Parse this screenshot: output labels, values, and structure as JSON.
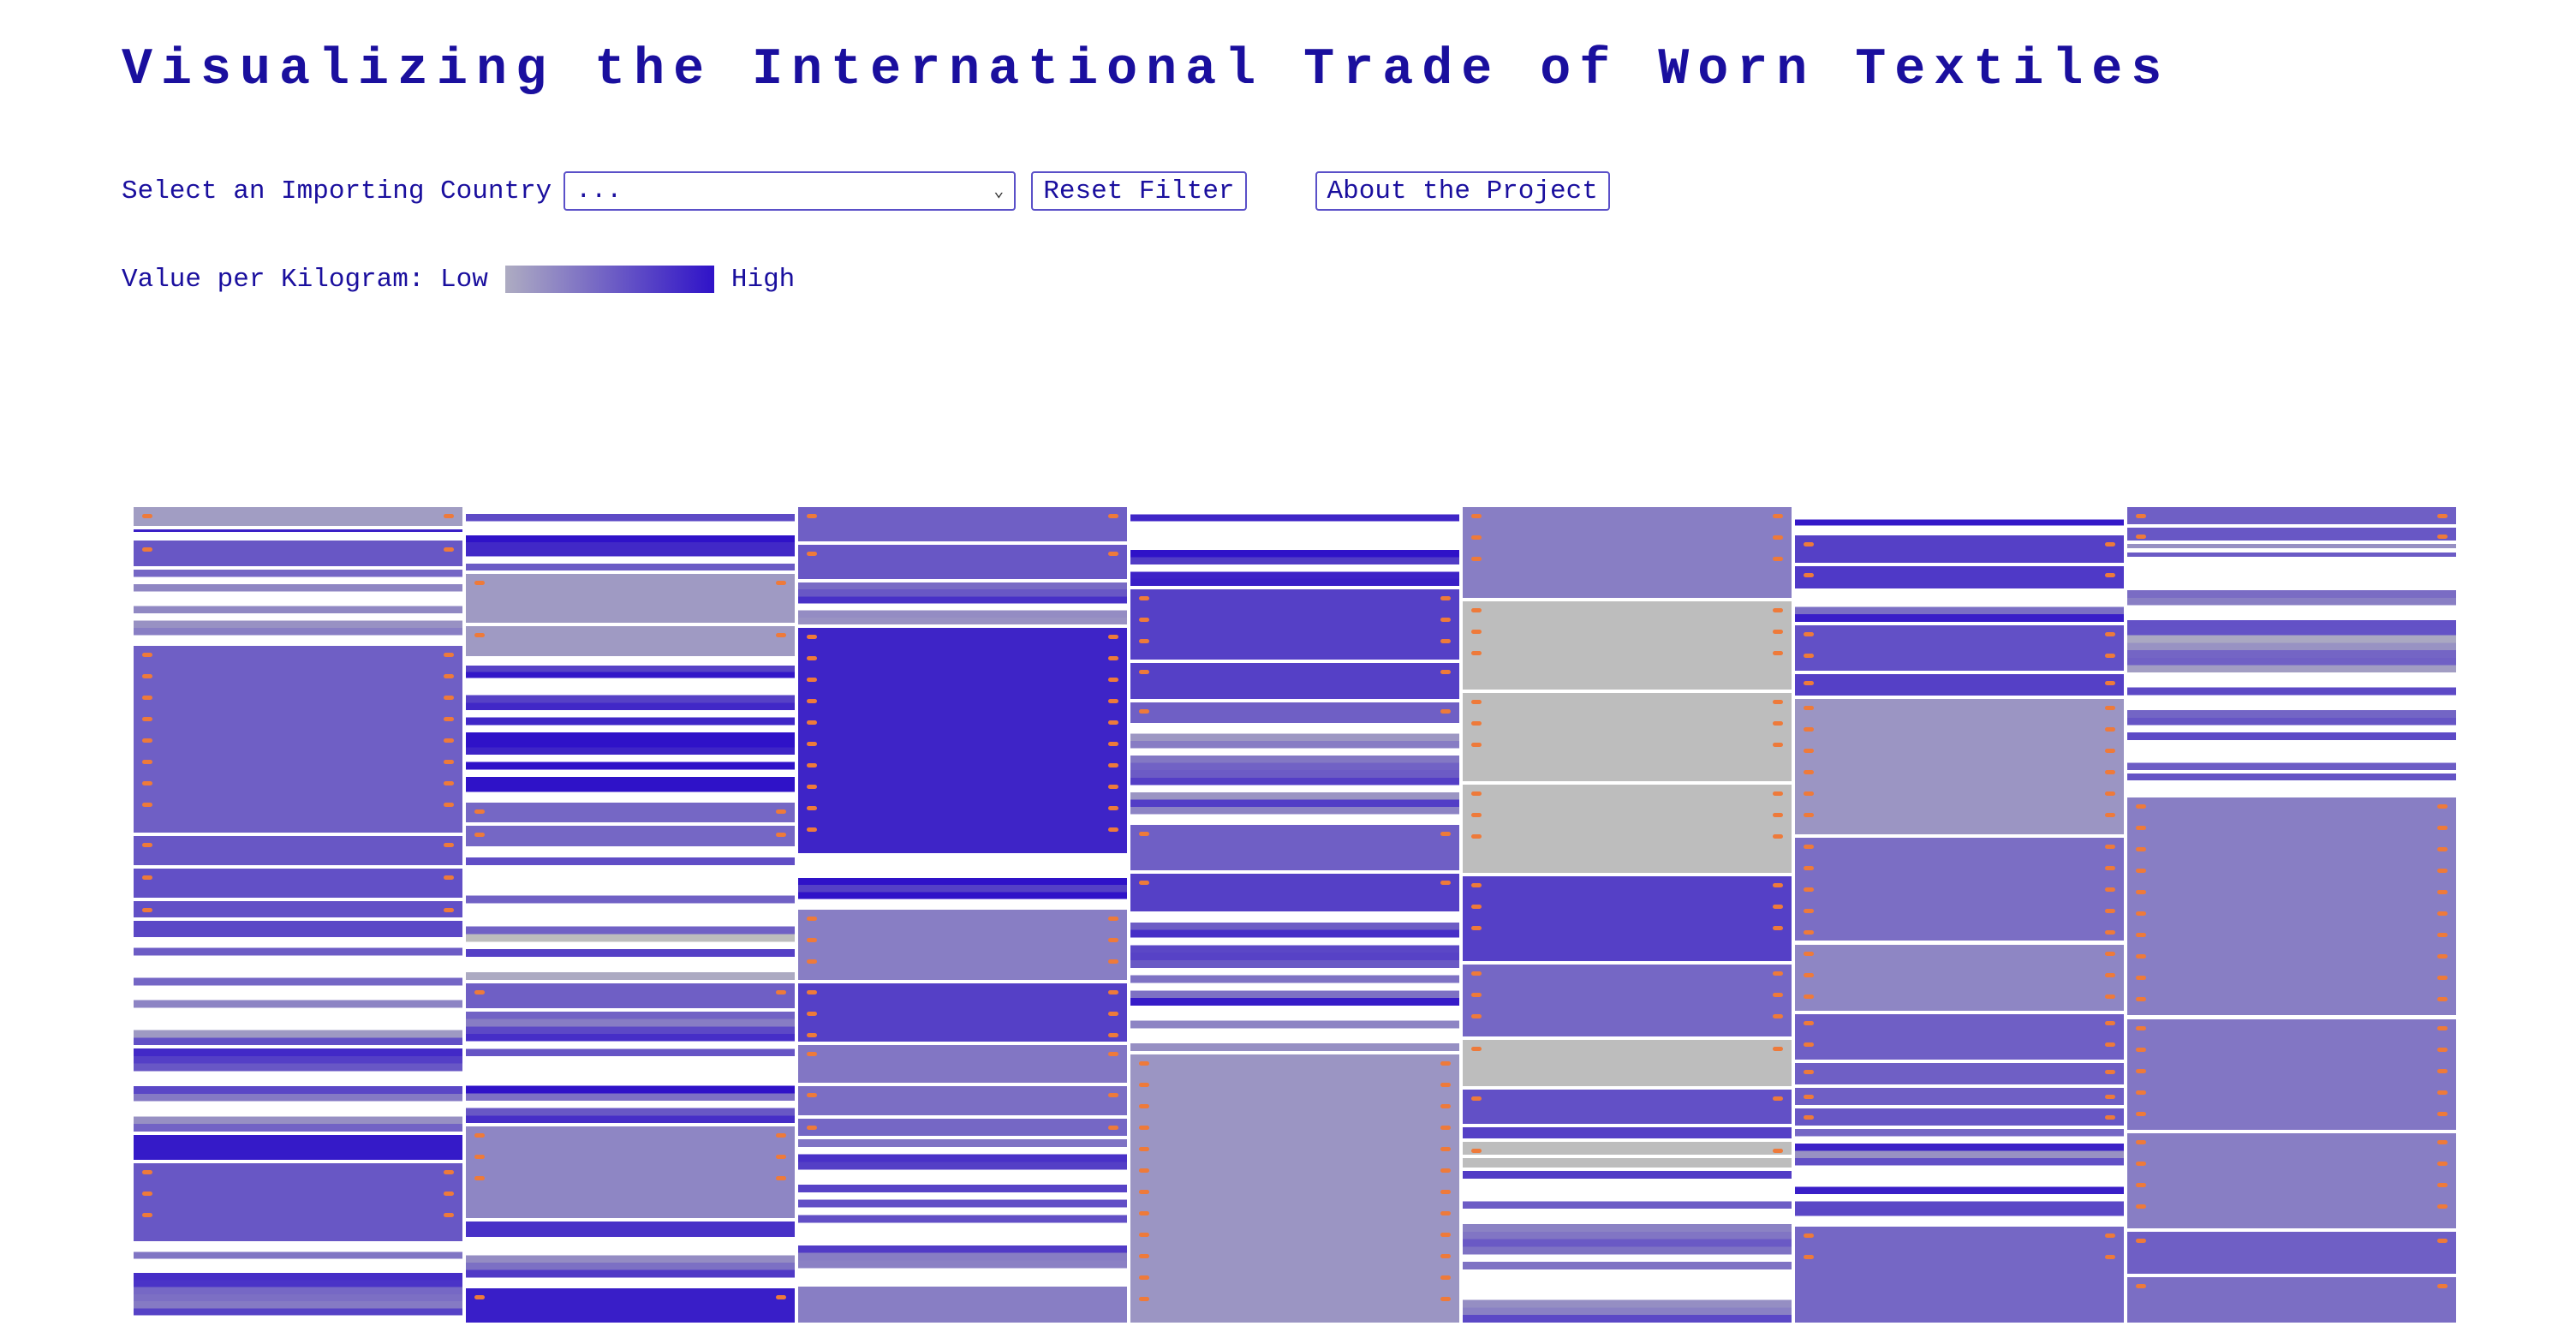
{
  "title": "Visualizing the International Trade of Worn Textiles",
  "controls": {
    "select_label": "Select an Importing Country",
    "select_value": "...",
    "reset_label": "Reset Filter",
    "about_label": "About the Project"
  },
  "legend": {
    "label": "Value per Kilogram: Low",
    "high_label": "High",
    "low_color": "#aeacc2",
    "high_color": "#2f12c8"
  },
  "colors": {
    "text": "#1a0f9e",
    "marker": "#ee7a3a"
  },
  "chart_data": {
    "type": "treemap",
    "columns": [
      {
        "segments": [
          {
            "share": 0.025,
            "v": 0.1,
            "marks": 1
          },
          {
            "share": 0.012,
            "v": 0.6,
            "strip": true
          },
          {
            "share": 0.032,
            "v": 0.55,
            "marks": 1
          },
          {
            "share": 0.085,
            "v": 0.55,
            "strip": true
          },
          {
            "share": 0.21,
            "v": 0.5,
            "marks": 8
          },
          {
            "share": 0.036,
            "v": 0.55,
            "marks": 1
          },
          {
            "share": 0.036,
            "v": 0.6,
            "marks": 1
          },
          {
            "share": 0.022,
            "v": 0.6,
            "marks": 1
          },
          {
            "share": 0.022,
            "v": 0.65,
            "marks": 0
          },
          {
            "share": 0.12,
            "v": 0.35,
            "strip": true
          },
          {
            "share": 0.095,
            "v": 0.55,
            "strip": true
          },
          {
            "share": 0.032,
            "v": 0.95,
            "marks": 0
          },
          {
            "share": 0.09,
            "v": 0.55,
            "marks": 3
          },
          {
            "share": 0.09,
            "v": 0.7,
            "strip": true
          }
        ]
      },
      {
        "segments": [
          {
            "share": 0.07,
            "v": 0.8,
            "strip": true
          },
          {
            "share": 0.055,
            "v": 0.12,
            "marks": 1
          },
          {
            "share": 0.035,
            "v": 0.12,
            "marks": 1
          },
          {
            "share": 0.03,
            "v": 0.6,
            "strip": true
          },
          {
            "share": 0.12,
            "v": 0.85,
            "strip": true
          },
          {
            "share": 0.025,
            "v": 0.45,
            "marks": 1
          },
          {
            "share": 0.025,
            "v": 0.45,
            "marks": 1
          },
          {
            "share": 0.14,
            "v": 0.3,
            "strip": true
          },
          {
            "share": 0.03,
            "v": 0.5,
            "marks": 1
          },
          {
            "share": 0.12,
            "v": 0.65,
            "strip": true
          },
          {
            "share": 0.1,
            "v": 0.25,
            "marks": 3
          },
          {
            "share": 0.02,
            "v": 0.8,
            "marks": 0
          },
          {
            "share": 0.05,
            "v": 0.5,
            "strip": true
          },
          {
            "share": 0.04,
            "v": 0.92,
            "marks": 1
          }
        ]
      },
      {
        "segments": [
          {
            "share": 0.046,
            "v": 0.5,
            "marks": 1
          },
          {
            "share": 0.046,
            "v": 0.55,
            "marks": 1
          },
          {
            "share": 0.055,
            "v": 0.55,
            "strip": true
          },
          {
            "share": 0.28,
            "v": 0.88,
            "marks": 10
          },
          {
            "share": 0.065,
            "v": 0.95,
            "strip": true
          },
          {
            "share": 0.09,
            "v": 0.3,
            "marks": 3
          },
          {
            "share": 0.075,
            "v": 0.7,
            "marks": 3
          },
          {
            "share": 0.05,
            "v": 0.35,
            "marks": 1
          },
          {
            "share": 0.04,
            "v": 0.4,
            "marks": 1
          },
          {
            "share": 0.025,
            "v": 0.45,
            "marks": 1
          },
          {
            "share": 0.18,
            "v": 0.45,
            "strip": true
          },
          {
            "share": 0.048,
            "v": 0.3,
            "marks": 0
          }
        ]
      },
      {
        "segments": [
          {
            "share": 0.1,
            "v": 0.7,
            "strip": true
          },
          {
            "share": 0.09,
            "v": 0.7,
            "marks": 3
          },
          {
            "share": 0.048,
            "v": 0.7,
            "marks": 1
          },
          {
            "share": 0.03,
            "v": 0.5,
            "marks": 1
          },
          {
            "share": 0.12,
            "v": 0.45,
            "strip": true
          },
          {
            "share": 0.06,
            "v": 0.5,
            "marks": 1
          },
          {
            "share": 0.05,
            "v": 0.7,
            "marks": 1
          },
          {
            "share": 0.17,
            "v": 0.55,
            "strip": true
          },
          {
            "share": 0.332,
            "v": 0.15,
            "marks": 12
          }
        ]
      },
      {
        "segments": [
          {
            "share": 0.115,
            "v": 0.3,
            "marks": 3
          },
          {
            "share": 0.112,
            "v": 0.0,
            "marks": 3
          },
          {
            "share": 0.112,
            "v": 0.0,
            "marks": 3
          },
          {
            "share": 0.112,
            "v": 0.0,
            "marks": 3
          },
          {
            "share": 0.108,
            "v": 0.7,
            "marks": 3
          },
          {
            "share": 0.092,
            "v": 0.45,
            "marks": 3
          },
          {
            "share": 0.06,
            "v": 0.0,
            "marks": 1
          },
          {
            "share": 0.046,
            "v": 0.6,
            "marks": 1
          },
          {
            "share": 0.018,
            "v": 0.7,
            "marks": 1
          },
          {
            "share": 0.02,
            "v": 0.0,
            "marks": 1
          },
          {
            "share": 0.016,
            "v": 0.0,
            "marks": 0
          },
          {
            "share": 0.189,
            "v": 0.5,
            "strip": true
          }
        ]
      },
      {
        "segments": [
          {
            "share": 0.034,
            "v": 0.8,
            "strip": true
          },
          {
            "share": 0.038,
            "v": 0.7,
            "marks": 1
          },
          {
            "share": 0.032,
            "v": 0.75,
            "marks": 1
          },
          {
            "share": 0.04,
            "v": 0.6,
            "strip": true
          },
          {
            "share": 0.06,
            "v": 0.6,
            "marks": 2
          },
          {
            "share": 0.03,
            "v": 0.7,
            "marks": 1
          },
          {
            "share": 0.17,
            "v": 0.15,
            "marks": 7
          },
          {
            "share": 0.13,
            "v": 0.4,
            "marks": 5
          },
          {
            "share": 0.085,
            "v": 0.25,
            "marks": 3
          },
          {
            "share": 0.06,
            "v": 0.5,
            "marks": 2
          },
          {
            "share": 0.03,
            "v": 0.5,
            "marks": 1
          },
          {
            "share": 0.025,
            "v": 0.5,
            "marks": 1
          },
          {
            "share": 0.025,
            "v": 0.55,
            "marks": 1
          },
          {
            "share": 0.12,
            "v": 0.55,
            "strip": true
          },
          {
            "share": 0.121,
            "v": 0.45,
            "marks": 2
          }
        ]
      },
      {
        "segments": [
          {
            "share": 0.025,
            "v": 0.5,
            "marks": 1
          },
          {
            "share": 0.02,
            "v": 0.55,
            "marks": 1
          },
          {
            "share": 0.02,
            "v": 0.4,
            "strip": true
          },
          {
            "share": 0.26,
            "v": 0.35,
            "strip": true
          },
          {
            "share": 0.03,
            "v": 0.9,
            "strip": true
          },
          {
            "share": 0.27,
            "v": 0.3,
            "marks": 10
          },
          {
            "share": 0.14,
            "v": 0.35,
            "marks": 5
          },
          {
            "share": 0.12,
            "v": 0.3,
            "marks": 4
          },
          {
            "share": 0.055,
            "v": 0.5,
            "marks": 1
          },
          {
            "share": 0.06,
            "v": 0.4,
            "marks": 1
          }
        ]
      }
    ]
  }
}
